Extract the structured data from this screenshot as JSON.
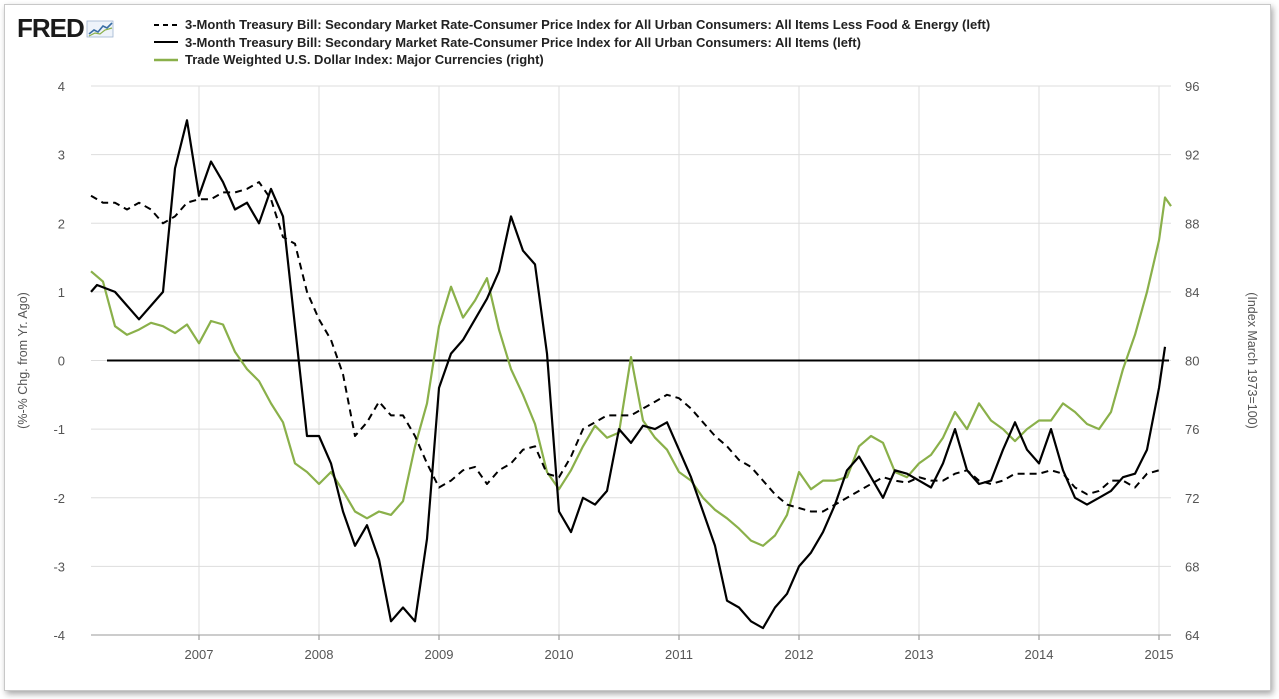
{
  "header": {
    "logo_text": "FRED",
    "logo_icon": "trend-chart-icon"
  },
  "chart_data": {
    "type": "line",
    "title": "",
    "x_range": [
      2006.1,
      2015.1
    ],
    "x_ticks": [
      "2007",
      "2008",
      "2009",
      "2010",
      "2011",
      "2012",
      "2013",
      "2014",
      "2015"
    ],
    "x_tick_values": [
      2007,
      2008,
      2009,
      2010,
      2011,
      2012,
      2013,
      2014,
      2015
    ],
    "y_left": {
      "label": "(%-% Chg. from Yr. Ago)",
      "range": [
        -4,
        4
      ],
      "ticks": [
        "4",
        "3",
        "2",
        "1",
        "0",
        "-1",
        "-2",
        "-3",
        "-4"
      ],
      "tick_values": [
        4,
        3,
        2,
        1,
        0,
        -1,
        -2,
        -3,
        -4
      ]
    },
    "y_right": {
      "label": "(Index March 1973=100)",
      "range": [
        64,
        96
      ],
      "ticks": [
        "96",
        "92",
        "88",
        "84",
        "80",
        "76",
        "72",
        "68",
        "64"
      ],
      "tick_values": [
        96,
        92,
        88,
        84,
        80,
        76,
        72,
        68,
        64
      ]
    },
    "grid": true,
    "zero_line": true,
    "legend_position": "top",
    "colors": {
      "core_series": "#000000",
      "all_items_series": "#000000",
      "dollar_series": "#8ab04a",
      "grid": "#dddddd",
      "axis_text": "#555555"
    },
    "series": [
      {
        "name": "3-Month Treasury Bill: Secondary Market Rate-Consumer Price Index for All Urban Consumers: All Items Less Food & Energy (left)",
        "axis": "left",
        "style": "dashed",
        "x": [
          2006.1,
          2006.2,
          2006.3,
          2006.4,
          2006.5,
          2006.6,
          2006.7,
          2006.8,
          2006.9,
          2007.0,
          2007.1,
          2007.2,
          2007.3,
          2007.4,
          2007.5,
          2007.6,
          2007.7,
          2007.8,
          2007.9,
          2008.0,
          2008.1,
          2008.2,
          2008.3,
          2008.4,
          2008.5,
          2008.6,
          2008.7,
          2008.8,
          2008.9,
          2009.0,
          2009.1,
          2009.2,
          2009.3,
          2009.4,
          2009.5,
          2009.6,
          2009.7,
          2009.8,
          2009.9,
          2010.0,
          2010.1,
          2010.2,
          2010.3,
          2010.4,
          2010.5,
          2010.6,
          2010.7,
          2010.8,
          2010.9,
          2011.0,
          2011.1,
          2011.2,
          2011.3,
          2011.4,
          2011.5,
          2011.6,
          2011.7,
          2011.8,
          2011.9,
          2012.0,
          2012.1,
          2012.2,
          2012.3,
          2012.4,
          2012.5,
          2012.6,
          2012.7,
          2012.8,
          2012.9,
          2013.0,
          2013.1,
          2013.2,
          2013.3,
          2013.4,
          2013.5,
          2013.6,
          2013.7,
          2013.8,
          2013.9,
          2014.0,
          2014.1,
          2014.2,
          2014.3,
          2014.4,
          2014.5,
          2014.6,
          2014.7,
          2014.8,
          2014.9,
          2015.0
        ],
        "values": [
          2.4,
          2.3,
          2.3,
          2.2,
          2.3,
          2.2,
          2.0,
          2.1,
          2.3,
          2.35,
          2.35,
          2.45,
          2.45,
          2.5,
          2.6,
          2.35,
          1.8,
          1.7,
          1.0,
          0.6,
          0.3,
          -0.2,
          -1.1,
          -0.9,
          -0.6,
          -0.8,
          -0.8,
          -1.1,
          -1.5,
          -1.85,
          -1.75,
          -1.6,
          -1.55,
          -1.8,
          -1.6,
          -1.5,
          -1.3,
          -1.25,
          -1.65,
          -1.7,
          -1.4,
          -1.0,
          -0.9,
          -0.8,
          -0.8,
          -0.8,
          -0.7,
          -0.6,
          -0.5,
          -0.55,
          -0.7,
          -0.9,
          -1.1,
          -1.25,
          -1.45,
          -1.55,
          -1.75,
          -1.95,
          -2.1,
          -2.15,
          -2.2,
          -2.2,
          -2.1,
          -2.0,
          -1.9,
          -1.8,
          -1.7,
          -1.75,
          -1.78,
          -1.7,
          -1.75,
          -1.75,
          -1.65,
          -1.6,
          -1.75,
          -1.8,
          -1.75,
          -1.65,
          -1.65,
          -1.65,
          -1.6,
          -1.65,
          -1.85,
          -1.95,
          -1.9,
          -1.75,
          -1.75,
          -1.85,
          -1.65,
          -1.6
        ]
      },
      {
        "name": "3-Month Treasury Bill: Secondary Market Rate-Consumer Price Index for All Urban Consumers: All Items (left)",
        "axis": "left",
        "style": "solid",
        "x": [
          2006.1,
          2006.15,
          2006.3,
          2006.4,
          2006.5,
          2006.6,
          2006.7,
          2006.8,
          2006.9,
          2007.0,
          2007.1,
          2007.2,
          2007.3,
          2007.4,
          2007.5,
          2007.6,
          2007.7,
          2007.8,
          2007.9,
          2008.0,
          2008.1,
          2008.2,
          2008.3,
          2008.4,
          2008.5,
          2008.6,
          2008.7,
          2008.8,
          2008.9,
          2009.0,
          2009.1,
          2009.2,
          2009.3,
          2009.4,
          2009.5,
          2009.6,
          2009.7,
          2009.8,
          2009.9,
          2010.0,
          2010.1,
          2010.2,
          2010.3,
          2010.4,
          2010.5,
          2010.6,
          2010.7,
          2010.8,
          2010.9,
          2011.0,
          2011.1,
          2011.2,
          2011.3,
          2011.4,
          2011.5,
          2011.6,
          2011.7,
          2011.8,
          2011.9,
          2012.0,
          2012.1,
          2012.2,
          2012.3,
          2012.4,
          2012.5,
          2012.6,
          2012.7,
          2012.8,
          2012.9,
          2013.0,
          2013.1,
          2013.2,
          2013.3,
          2013.4,
          2013.5,
          2013.6,
          2013.7,
          2013.8,
          2013.9,
          2014.0,
          2014.1,
          2014.2,
          2014.3,
          2014.4,
          2014.5,
          2014.6,
          2014.7,
          2014.8,
          2014.9,
          2015.0
        ],
        "values": [
          1.0,
          1.1,
          1.0,
          0.8,
          0.6,
          0.8,
          1.0,
          2.8,
          3.5,
          2.4,
          2.9,
          2.6,
          2.2,
          2.3,
          2.0,
          2.5,
          2.1,
          0.5,
          -1.1,
          -1.1,
          -1.5,
          -2.2,
          -2.7,
          -2.4,
          -2.9,
          -3.8,
          -3.6,
          -3.8,
          -2.6,
          -0.4,
          0.1,
          0.3,
          0.6,
          0.9,
          1.3,
          2.1,
          1.6,
          1.4,
          0.1,
          -2.2,
          -2.5,
          -2.0,
          -2.1,
          -1.9,
          -1.0,
          -1.2,
          -0.95,
          -1.0,
          -0.9,
          -1.3,
          -1.7,
          -2.2,
          -2.7,
          -3.5,
          -3.6,
          -3.8,
          -3.9,
          -3.6,
          -3.4,
          -3.0,
          -2.8,
          -2.5,
          -2.1,
          -1.6,
          -1.4,
          -1.7,
          -2.0,
          -1.6,
          -1.65,
          -1.75,
          -1.85,
          -1.5,
          -1.0,
          -1.6,
          -1.8,
          -1.75,
          -1.3,
          -0.9,
          -1.3,
          -1.5,
          -1.0,
          -1.6,
          -2.0,
          -2.1,
          -2.0,
          -1.9,
          -1.7,
          -1.65,
          -1.3,
          -0.4
        ],
        "extra": [
          2015.05,
          0.2
        ]
      },
      {
        "name": "Trade Weighted U.S. Dollar Index: Major Currencies (right)",
        "axis": "right",
        "style": "solid",
        "x": [
          2006.1,
          2006.2,
          2006.3,
          2006.4,
          2006.5,
          2006.6,
          2006.7,
          2006.8,
          2006.9,
          2007.0,
          2007.1,
          2007.2,
          2007.3,
          2007.4,
          2007.5,
          2007.6,
          2007.7,
          2007.8,
          2007.9,
          2008.0,
          2008.1,
          2008.2,
          2008.3,
          2008.4,
          2008.5,
          2008.6,
          2008.7,
          2008.8,
          2008.9,
          2009.0,
          2009.1,
          2009.2,
          2009.3,
          2009.4,
          2009.5,
          2009.6,
          2009.7,
          2009.8,
          2009.9,
          2010.0,
          2010.1,
          2010.2,
          2010.3,
          2010.4,
          2010.5,
          2010.6,
          2010.7,
          2010.8,
          2010.9,
          2011.0,
          2011.1,
          2011.2,
          2011.3,
          2011.4,
          2011.5,
          2011.6,
          2011.7,
          2011.8,
          2011.9,
          2012.0,
          2012.1,
          2012.2,
          2012.3,
          2012.4,
          2012.5,
          2012.6,
          2012.7,
          2012.8,
          2012.9,
          2013.0,
          2013.1,
          2013.2,
          2013.3,
          2013.4,
          2013.5,
          2013.6,
          2013.7,
          2013.8,
          2013.9,
          2014.0,
          2014.1,
          2014.2,
          2014.3,
          2014.4,
          2014.5,
          2014.6,
          2014.7,
          2014.8,
          2014.9,
          2015.0,
          2015.05,
          2015.1
        ],
        "values": [
          85.2,
          84.6,
          82.0,
          81.5,
          81.8,
          82.2,
          82.0,
          81.6,
          82.1,
          81.0,
          82.3,
          82.1,
          80.5,
          79.5,
          78.8,
          77.5,
          76.4,
          74.0,
          73.5,
          72.8,
          73.5,
          72.4,
          71.2,
          70.8,
          71.2,
          71.0,
          71.8,
          75.0,
          77.5,
          82.0,
          84.3,
          82.5,
          83.5,
          84.8,
          81.8,
          79.5,
          78.0,
          76.3,
          73.5,
          72.5,
          73.6,
          75.0,
          76.2,
          75.5,
          75.8,
          80.2,
          76.5,
          75.5,
          74.8,
          73.5,
          73.0,
          72.0,
          71.3,
          70.8,
          70.2,
          69.5,
          69.2,
          69.8,
          71.0,
          73.5,
          72.5,
          73.0,
          73.0,
          73.2,
          75.0,
          75.6,
          75.2,
          73.5,
          73.2,
          74.0,
          74.5,
          75.5,
          77.0,
          76.0,
          77.5,
          76.5,
          76.0,
          75.3,
          76.0,
          76.5,
          76.5,
          77.5,
          77.0,
          76.3,
          76.0,
          77.0,
          79.5,
          81.5,
          84.0,
          87.0,
          89.5,
          89.0
        ]
      }
    ]
  }
}
